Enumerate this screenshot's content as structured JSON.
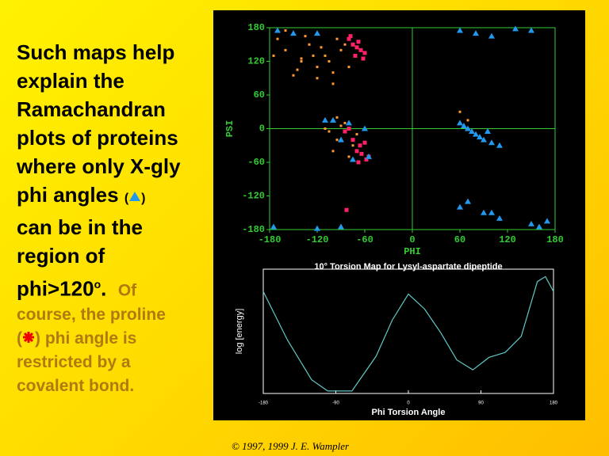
{
  "text": {
    "lines": [
      "Such maps help",
      "explain the",
      "Ramachandran",
      "plots of proteins",
      "where only X-gly",
      "phi angles",
      "can be in the",
      "region of",
      "phi>120"
    ],
    "sup": "o",
    "period": ".",
    "of": "Of",
    "note": [
      "course,  the proline",
      "phi angle is",
      "restricted by a",
      "covalent bond."
    ],
    "open": "(",
    "close": ")",
    "copyright": "© 1997, 1999 J. E. Wampler"
  },
  "chart_data": [
    {
      "type": "scatter",
      "xlabel": "PHI",
      "ylabel": "PSI",
      "xlim": [
        -180,
        180
      ],
      "ylim": [
        -180,
        180
      ],
      "xticks": [
        -180,
        -120,
        -60,
        0,
        60,
        120,
        180
      ],
      "yticks": [
        180,
        120,
        60,
        0,
        -60,
        -120,
        -180
      ],
      "axis_color": "#33cc33",
      "series": [
        {
          "color": "#ff9933",
          "marker": "dot",
          "x": [
            -170,
            -160,
            -150,
            -140,
            -130,
            -120,
            -110,
            -100,
            -150,
            -135,
            -125,
            -115,
            -105,
            -95,
            -85,
            -160,
            -140,
            -120,
            -100,
            -90,
            -80,
            -110,
            -95,
            -85,
            -75,
            -70,
            -100,
            -90,
            -105,
            -80,
            -95,
            -65,
            60,
            70,
            -175,
            -145
          ],
          "y": [
            160,
            140,
            170,
            120,
            150,
            110,
            130,
            100,
            95,
            165,
            130,
            145,
            120,
            160,
            150,
            175,
            125,
            90,
            80,
            140,
            110,
            0,
            -20,
            10,
            -30,
            -10,
            -40,
            5,
            -5,
            -50,
            20,
            -45,
            30,
            15,
            130,
            105
          ]
        },
        {
          "color": "#ff2266",
          "marker": "square",
          "x": [
            -80,
            -75,
            -70,
            -65,
            -60,
            -72,
            -68,
            -62,
            -78,
            -66,
            -70,
            -64,
            -58,
            -60,
            -75,
            -85,
            -80,
            -55,
            -68,
            -83
          ],
          "y": [
            160,
            150,
            145,
            140,
            135,
            130,
            155,
            125,
            165,
            -30,
            -40,
            -45,
            -55,
            -25,
            -20,
            -5,
            0,
            -50,
            -60,
            -145
          ]
        },
        {
          "color": "#2299ee",
          "marker": "triangle",
          "x": [
            -170,
            -150,
            -110,
            -80,
            -60,
            -90,
            -100,
            -120,
            -75,
            -55,
            60,
            70,
            80,
            75,
            85,
            90,
            95,
            100,
            65,
            110,
            70,
            90,
            110,
            150,
            170,
            60,
            80,
            100,
            130,
            160,
            -175,
            -120,
            -90,
            150,
            100,
            60
          ],
          "y": [
            175,
            170,
            15,
            10,
            0,
            -20,
            15,
            170,
            -55,
            -50,
            10,
            0,
            -10,
            -5,
            -15,
            -20,
            -5,
            -25,
            5,
            -30,
            -130,
            -150,
            -160,
            -170,
            -165,
            175,
            170,
            165,
            178,
            -175,
            -175,
            -178,
            -175,
            175,
            -150,
            -140
          ]
        }
      ]
    },
    {
      "type": "line",
      "title": "10° Torsion Map for Lysyl-aspartate dipeptide",
      "xlabel": "Phi Torsion Angle",
      "ylabel": "log [energy]",
      "xlim": [
        -180,
        180
      ],
      "ylim": [
        0,
        1
      ],
      "xticks": [
        -180,
        -90,
        0,
        90,
        180
      ],
      "color": "#5fc8c8",
      "x": [
        -180,
        -150,
        -120,
        -100,
        -70,
        -40,
        -20,
        0,
        20,
        40,
        60,
        80,
        100,
        120,
        140,
        160,
        170,
        180
      ],
      "values": [
        0.82,
        0.43,
        0.11,
        0.02,
        0.02,
        0.3,
        0.59,
        0.8,
        0.68,
        0.49,
        0.27,
        0.19,
        0.29,
        0.33,
        0.46,
        0.9,
        0.94,
        0.82
      ]
    }
  ]
}
